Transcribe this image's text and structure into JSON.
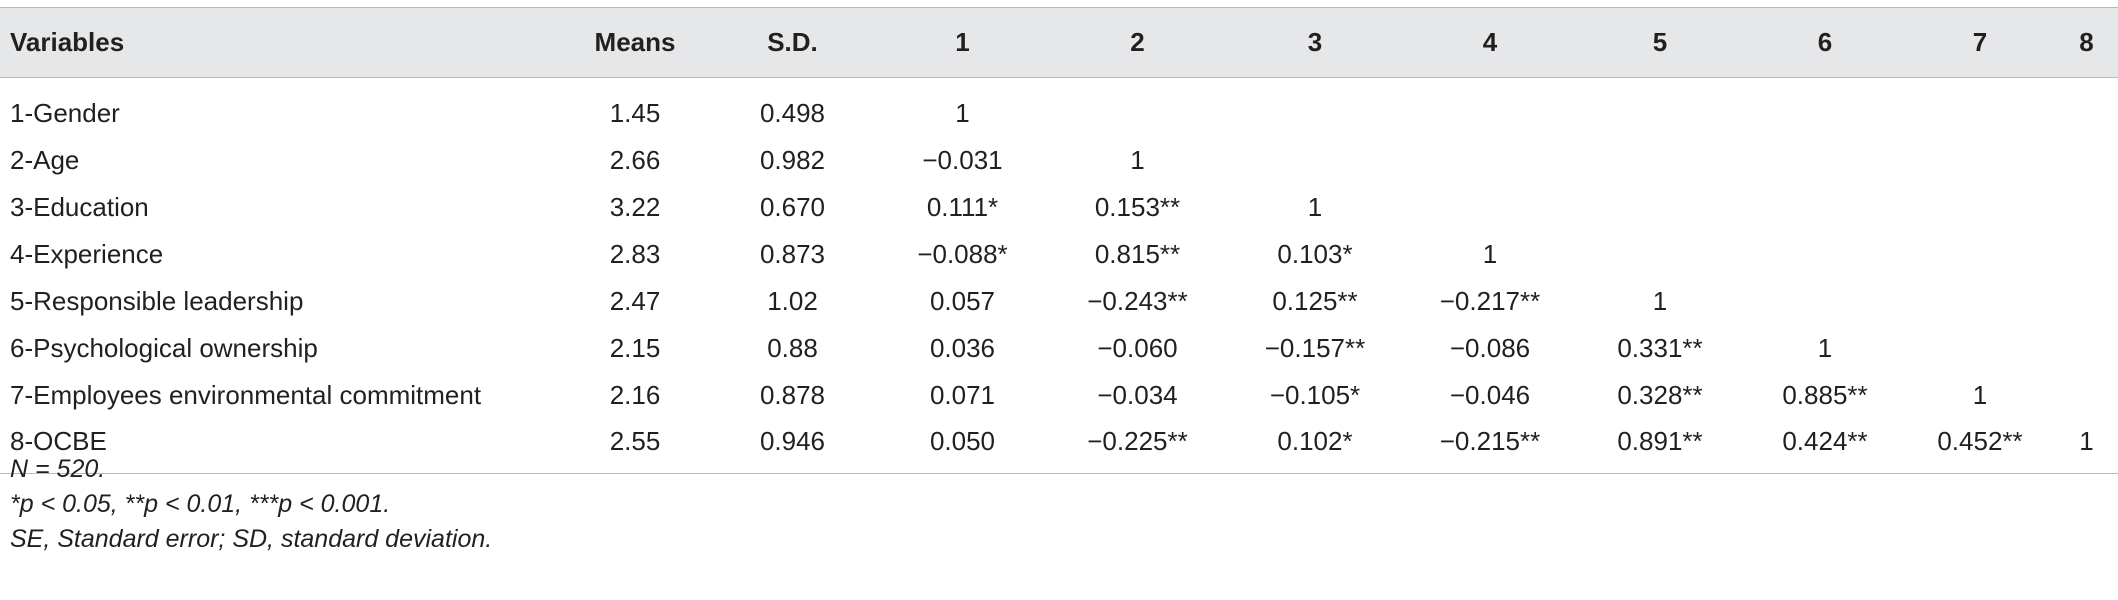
{
  "table": {
    "headers": [
      "Variables",
      "Means",
      "S.D.",
      "1",
      "2",
      "3",
      "4",
      "5",
      "6",
      "7",
      "8"
    ],
    "rows": [
      [
        "1-Gender",
        "1.45",
        "0.498",
        "1",
        "",
        "",
        "",
        "",
        "",
        "",
        ""
      ],
      [
        "2-Age",
        "2.66",
        "0.982",
        "−0.031",
        "1",
        "",
        "",
        "",
        "",
        "",
        ""
      ],
      [
        "3-Education",
        "3.22",
        "0.670",
        "0.111*",
        "0.153**",
        "1",
        "",
        "",
        "",
        "",
        ""
      ],
      [
        "4-Experience",
        "2.83",
        "0.873",
        "−0.088*",
        "0.815**",
        "0.103*",
        "1",
        "",
        "",
        "",
        ""
      ],
      [
        "5-Responsible leadership",
        "2.47",
        "1.02",
        "0.057",
        "−0.243**",
        "0.125**",
        "−0.217**",
        "1",
        "",
        "",
        ""
      ],
      [
        "6-Psychological ownership",
        "2.15",
        "0.88",
        "0.036",
        "−0.060",
        "−0.157**",
        "−0.086",
        "0.331**",
        "1",
        "",
        ""
      ],
      [
        "7-Employees environmental commitment",
        "2.16",
        "0.878",
        "0.071",
        "−0.034",
        "−0.105*",
        "−0.046",
        "0.328**",
        "0.885**",
        "1",
        ""
      ],
      [
        "8-OCBE",
        "2.55",
        "0.946",
        "0.050",
        "−0.225**",
        "0.102*",
        "−0.215**",
        "0.891**",
        "0.424**",
        "0.452**",
        "1"
      ]
    ]
  },
  "notes": [
    "N = 520.",
    "*p < 0.05, **p < 0.01, ***p < 0.001.",
    "SE, Standard error; SD, standard deviation."
  ],
  "colors": {
    "header_background": "#e6e7e8",
    "rule": "#b8b9bb",
    "text": "#231f20"
  }
}
